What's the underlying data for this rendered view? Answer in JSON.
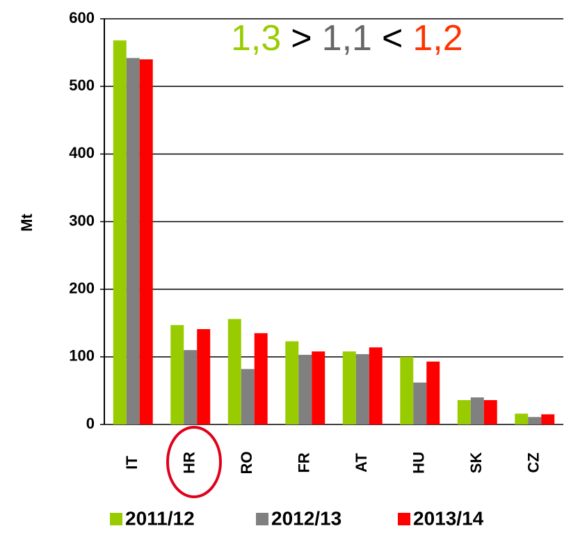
{
  "chart_data": {
    "type": "bar",
    "y_label": "Mt",
    "annotation": [
      {
        "text": "1,3",
        "color": "#99cc00"
      },
      {
        "text": ">",
        "color": "#000000"
      },
      {
        "text": "1,1",
        "color": "#666666"
      },
      {
        "text": "<",
        "color": "#000000"
      },
      {
        "text": "1,2",
        "color": "#ff3300"
      }
    ],
    "categories": [
      "IT",
      "HR",
      "RO",
      "FR",
      "AT",
      "HU",
      "SK",
      "CZ"
    ],
    "series": [
      {
        "name": "2011/12",
        "color": "#99cc00",
        "values": [
          568,
          147,
          156,
          123,
          108,
          100,
          36,
          16
        ]
      },
      {
        "name": "2012/13",
        "color": "#808080",
        "values": [
          542,
          110,
          82,
          103,
          104,
          62,
          40,
          11
        ]
      },
      {
        "name": "2013/14",
        "color": "#ff0000",
        "values": [
          540,
          141,
          135,
          108,
          114,
          93,
          36,
          15
        ]
      }
    ],
    "ylim": [
      0,
      600
    ],
    "yticks": [
      0,
      100,
      200,
      300,
      400,
      500,
      600
    ],
    "grid": true
  }
}
